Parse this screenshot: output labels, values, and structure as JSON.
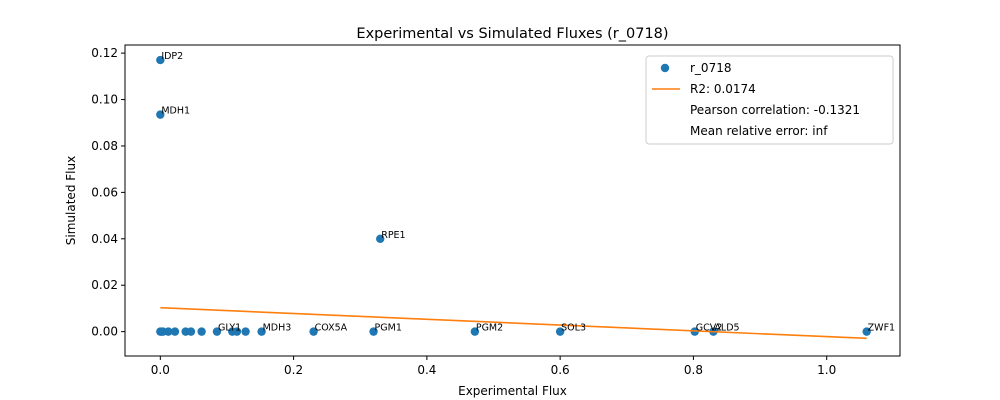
{
  "chart_data": {
    "type": "scatter",
    "title": "Experimental vs Simulated Fluxes (r_0718)",
    "xlabel": "Experimental Flux",
    "ylabel": "Simulated Flux",
    "xlim": [
      -0.053,
      1.11
    ],
    "ylim": [
      -0.0105,
      0.1235
    ],
    "xticks": [
      0.0,
      0.2,
      0.4,
      0.6,
      0.8,
      1.0
    ],
    "xtick_labels": [
      "0.0",
      "0.2",
      "0.4",
      "0.6",
      "0.8",
      "1.0"
    ],
    "yticks": [
      0.0,
      0.02,
      0.04,
      0.06,
      0.08,
      0.1,
      0.12
    ],
    "ytick_labels": [
      "0.00",
      "0.02",
      "0.04",
      "0.06",
      "0.08",
      "0.10",
      "0.12"
    ],
    "grid": false,
    "legend_position": "top-right",
    "colors": {
      "points": "#1f77b4",
      "fit_line": "#ff7f0e",
      "axes": "#000000"
    },
    "legend": [
      {
        "kind": "marker",
        "text": "r_0718"
      },
      {
        "kind": "line",
        "text": "R2: 0.0174"
      },
      {
        "kind": "none",
        "text": "Pearson correlation: -0.1321"
      },
      {
        "kind": "none",
        "text": "Mean relative error: inf"
      }
    ],
    "points": [
      {
        "x": 0.0,
        "y": 0.117,
        "label": "IDP2"
      },
      {
        "x": 0.0,
        "y": 0.0935,
        "label": "MDH1"
      },
      {
        "x": 0.33,
        "y": 0.04,
        "label": "RPE1"
      },
      {
        "x": 0.0,
        "y": 0.0,
        "label": ""
      },
      {
        "x": 0.002,
        "y": 0.0,
        "label": ""
      },
      {
        "x": 0.004,
        "y": 0.0,
        "label": ""
      },
      {
        "x": 0.012,
        "y": 0.0,
        "label": ""
      },
      {
        "x": 0.022,
        "y": 0.0,
        "label": ""
      },
      {
        "x": 0.038,
        "y": 0.0,
        "label": ""
      },
      {
        "x": 0.046,
        "y": 0.0,
        "label": ""
      },
      {
        "x": 0.062,
        "y": 0.0,
        "label": ""
      },
      {
        "x": 0.085,
        "y": 0.0,
        "label": "GLY1"
      },
      {
        "x": 0.108,
        "y": 0.0,
        "label": ""
      },
      {
        "x": 0.115,
        "y": 0.0,
        "label": ""
      },
      {
        "x": 0.128,
        "y": 0.0,
        "label": ""
      },
      {
        "x": 0.152,
        "y": 0.0,
        "label": "MDH3"
      },
      {
        "x": 0.23,
        "y": 0.0,
        "label": "COX5A"
      },
      {
        "x": 0.32,
        "y": 0.0,
        "label": "PGM1"
      },
      {
        "x": 0.472,
        "y": 0.0,
        "label": "PGM2"
      },
      {
        "x": 0.6,
        "y": 0.0,
        "label": "SOL3"
      },
      {
        "x": 0.802,
        "y": 0.0,
        "label": "GCV2"
      },
      {
        "x": 0.83,
        "y": 0.0,
        "label": "ALD5"
      },
      {
        "x": 1.06,
        "y": 0.0,
        "label": "ZWF1"
      }
    ],
    "fit_line": {
      "x": [
        0.0,
        1.06
      ],
      "y": [
        0.0103,
        -0.0029
      ]
    }
  }
}
